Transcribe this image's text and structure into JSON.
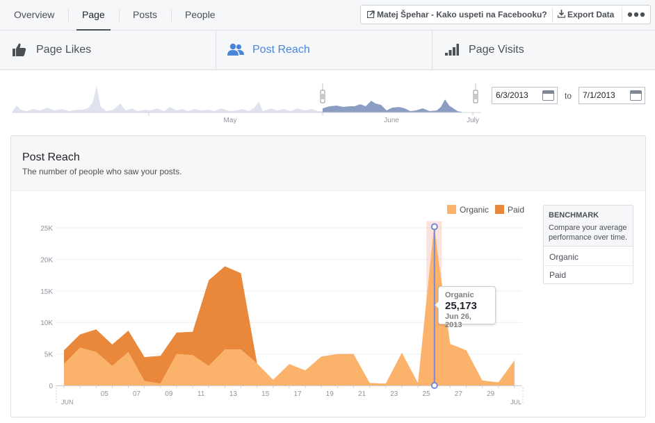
{
  "nav": {
    "tabs": [
      {
        "label": "Overview",
        "active": false
      },
      {
        "label": "Page",
        "active": true
      },
      {
        "label": "Posts",
        "active": false
      },
      {
        "label": "People",
        "active": false
      }
    ],
    "page_button": "Matej Špehar - Kako uspeti na Facebooku?",
    "export_button": "Export Data",
    "more_icon": "ellipsis-icon"
  },
  "metrics": [
    {
      "label": "Page Likes",
      "icon": "thumbs-up-icon",
      "active": false
    },
    {
      "label": "Post Reach",
      "icon": "people-icon",
      "active": true
    },
    {
      "label": "Page Visits",
      "icon": "bar-chart-icon",
      "active": false
    }
  ],
  "timeline": {
    "month_labels": [
      "May",
      "June",
      "July"
    ]
  },
  "date_range": {
    "start": "6/3/2013",
    "to_label": "to",
    "end": "7/1/2013"
  },
  "card": {
    "title": "Post Reach",
    "subtitle": "The number of people who saw your posts."
  },
  "legend": {
    "organic": "Organic",
    "paid": "Paid"
  },
  "colors": {
    "organic": "#fbb26a",
    "paid": "#e9873a",
    "accent": "#4a86d6",
    "crosshair": "#7a89d8"
  },
  "benchmark": {
    "title": "BENCHMARK",
    "description": "Compare your average performance over time.",
    "items": [
      "Organic",
      "Paid"
    ]
  },
  "tooltip": {
    "series": "Organic",
    "value": "25,173",
    "date": "Jun 26, 2013"
  },
  "chart_data": {
    "type": "area",
    "x": [
      "Jun 3",
      "Jun 4",
      "Jun 5",
      "Jun 6",
      "Jun 7",
      "Jun 8",
      "Jun 9",
      "Jun 10",
      "Jun 11",
      "Jun 12",
      "Jun 13",
      "Jun 14",
      "Jun 15",
      "Jun 16",
      "Jun 17",
      "Jun 18",
      "Jun 19",
      "Jun 20",
      "Jun 21",
      "Jun 22",
      "Jun 23",
      "Jun 24",
      "Jun 25",
      "Jun 26",
      "Jun 27",
      "Jun 28",
      "Jun 29",
      "Jun 30",
      "Jul 1"
    ],
    "x_tick_labels": [
      "05",
      "07",
      "09",
      "11",
      "13",
      "15",
      "17",
      "19",
      "21",
      "23",
      "25",
      "27",
      "29"
    ],
    "x_edge_labels": [
      "JUN",
      "JUL"
    ],
    "y_tick_labels": [
      "0",
      "5K",
      "10K",
      "15K",
      "20K",
      "25K"
    ],
    "ylim": [
      0,
      25000
    ],
    "series": [
      {
        "name": "Organic",
        "values": [
          3400,
          6000,
          5300,
          3100,
          5300,
          700,
          300,
          5000,
          4800,
          3100,
          5700,
          5700,
          3500,
          900,
          3400,
          2400,
          4600,
          5000,
          5000,
          400,
          300,
          5200,
          400,
          25173,
          6600,
          5600,
          800,
          500,
          4000
        ]
      },
      {
        "name": "Paid",
        "values": [
          2200,
          2100,
          3600,
          3400,
          3400,
          3800,
          4400,
          3400,
          3700,
          13600,
          13200,
          12100,
          0,
          0,
          0,
          0,
          0,
          0,
          0,
          0,
          0,
          0,
          0,
          0,
          0,
          0,
          0,
          0,
          0
        ]
      }
    ],
    "grid": true,
    "legend_position": "top-right",
    "highlight": {
      "series": "Organic",
      "x": "Jun 26",
      "value": 25173
    }
  }
}
